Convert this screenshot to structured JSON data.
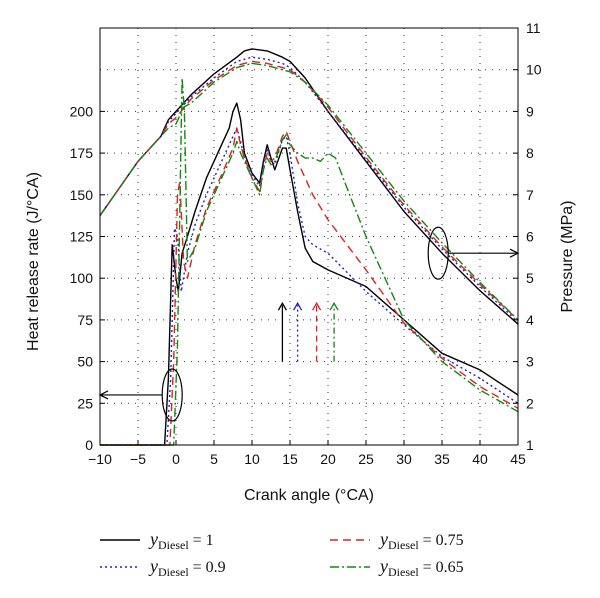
{
  "chart_data": {
    "type": "line",
    "xlabel": "Crank angle (°CA)",
    "ylabel_left": "Heat release rate (J/°CA)",
    "ylabel_right": "Pressure (MPa)",
    "xlim": [
      -10,
      45
    ],
    "ylim_left": [
      0,
      250
    ],
    "ylim_right": [
      1,
      11
    ],
    "x_ticks": [
      -10,
      -5,
      0,
      5,
      10,
      15,
      20,
      25,
      30,
      35,
      40,
      45
    ],
    "y_left_ticks": [
      0,
      25,
      50,
      75,
      100,
      125,
      150,
      175,
      200
    ],
    "y_right_ticks": [
      1,
      2,
      3,
      4,
      5,
      6,
      7,
      8,
      9,
      10,
      11
    ],
    "grid": true,
    "legend_position": "bottom",
    "legend_symbol": "y",
    "legend_subscript": "Diesel",
    "series": [
      {
        "name": "= 1",
        "color": "#000000",
        "dash": "",
        "hrr": [
          [
            -10,
            0
          ],
          [
            -1.5,
            0
          ],
          [
            -1,
            40
          ],
          [
            -0.5,
            120
          ],
          [
            0,
            100
          ],
          [
            0.3,
            92
          ],
          [
            0.8,
            115
          ],
          [
            1.5,
            125
          ],
          [
            2.5,
            140
          ],
          [
            4,
            160
          ],
          [
            5.5,
            175
          ],
          [
            7,
            190
          ],
          [
            7.5,
            200
          ],
          [
            8,
            205
          ],
          [
            8.5,
            195
          ],
          [
            9,
            175
          ],
          [
            10,
            163
          ],
          [
            11,
            157
          ],
          [
            11.5,
            170
          ],
          [
            12,
            180
          ],
          [
            12.5,
            172
          ],
          [
            13,
            165
          ],
          [
            14,
            178
          ],
          [
            14.5,
            178
          ],
          [
            15,
            165
          ],
          [
            16,
            140
          ],
          [
            17,
            118
          ],
          [
            18,
            110
          ],
          [
            20,
            105
          ],
          [
            25,
            95
          ],
          [
            30,
            75
          ],
          [
            35,
            55
          ],
          [
            40,
            45
          ],
          [
            45,
            30
          ]
        ],
        "pressure": [
          [
            -10,
            6.5
          ],
          [
            -5,
            7.8
          ],
          [
            -2,
            8.4
          ],
          [
            -1,
            8.8
          ],
          [
            0,
            9.0
          ],
          [
            2,
            9.4
          ],
          [
            5,
            9.9
          ],
          [
            8,
            10.3
          ],
          [
            9,
            10.45
          ],
          [
            10,
            10.5
          ],
          [
            12,
            10.45
          ],
          [
            14,
            10.3
          ],
          [
            15,
            10.2
          ],
          [
            17,
            9.8
          ],
          [
            20,
            9.0
          ],
          [
            25,
            7.8
          ],
          [
            30,
            6.6
          ],
          [
            35,
            5.6
          ],
          [
            40,
            4.7
          ],
          [
            45,
            3.9
          ]
        ]
      },
      {
        "name": "= 0.9",
        "color": "#2222bb",
        "dash": "2,3",
        "hrr": [
          [
            -10,
            0
          ],
          [
            -1.2,
            0
          ],
          [
            -0.7,
            40
          ],
          [
            -0.2,
            130
          ],
          [
            0.2,
            125
          ],
          [
            0.7,
            92
          ],
          [
            1.5,
            115
          ],
          [
            2.5,
            132
          ],
          [
            4,
            150
          ],
          [
            6,
            170
          ],
          [
            7.5,
            185
          ],
          [
            8,
            190
          ],
          [
            8.5,
            182
          ],
          [
            9,
            172
          ],
          [
            10,
            162
          ],
          [
            11,
            155
          ],
          [
            11.5,
            168
          ],
          [
            12,
            178
          ],
          [
            12.5,
            170
          ],
          [
            13,
            168
          ],
          [
            14,
            183
          ],
          [
            14.5,
            185
          ],
          [
            15,
            175
          ],
          [
            16,
            145
          ],
          [
            17,
            125
          ],
          [
            18,
            120
          ],
          [
            20,
            115
          ],
          [
            25,
            92
          ],
          [
            30,
            72
          ],
          [
            35,
            53
          ],
          [
            40,
            40
          ],
          [
            45,
            25
          ]
        ],
        "pressure": [
          [
            -10,
            6.5
          ],
          [
            -5,
            7.8
          ],
          [
            -2,
            8.4
          ],
          [
            -1,
            8.75
          ],
          [
            0,
            8.95
          ],
          [
            2,
            9.35
          ],
          [
            5,
            9.8
          ],
          [
            8,
            10.2
          ],
          [
            10,
            10.3
          ],
          [
            12,
            10.25
          ],
          [
            14,
            10.15
          ],
          [
            15,
            10.05
          ],
          [
            17,
            9.7
          ],
          [
            20,
            9.0
          ],
          [
            25,
            7.85
          ],
          [
            30,
            6.7
          ],
          [
            35,
            5.7
          ],
          [
            40,
            4.8
          ],
          [
            45,
            3.95
          ]
        ]
      },
      {
        "name": "= 0.75",
        "color": "#dd2222",
        "dash": "8,5",
        "hrr": [
          [
            -10,
            0
          ],
          [
            -0.8,
            0
          ],
          [
            -0.3,
            50
          ],
          [
            0.2,
            150
          ],
          [
            0.5,
            158
          ],
          [
            1,
            110
          ],
          [
            1.5,
            100
          ],
          [
            2.5,
            120
          ],
          [
            4,
            142
          ],
          [
            6,
            162
          ],
          [
            7.5,
            178
          ],
          [
            8,
            190
          ],
          [
            8.5,
            180
          ],
          [
            9,
            172
          ],
          [
            10,
            160
          ],
          [
            11,
            152
          ],
          [
            11.5,
            165
          ],
          [
            12,
            175
          ],
          [
            12.5,
            170
          ],
          [
            13,
            172
          ],
          [
            14,
            185
          ],
          [
            14.5,
            188
          ],
          [
            15,
            182
          ],
          [
            16,
            170
          ],
          [
            17,
            160
          ],
          [
            18,
            150
          ],
          [
            20,
            135
          ],
          [
            25,
            105
          ],
          [
            30,
            73
          ],
          [
            35,
            52
          ],
          [
            40,
            35
          ],
          [
            45,
            22
          ]
        ],
        "pressure": [
          [
            -10,
            6.5
          ],
          [
            -5,
            7.8
          ],
          [
            -2,
            8.4
          ],
          [
            -1,
            8.7
          ],
          [
            0,
            8.85
          ],
          [
            2,
            9.3
          ],
          [
            5,
            9.75
          ],
          [
            8,
            10.1
          ],
          [
            10,
            10.2
          ],
          [
            12,
            10.15
          ],
          [
            14,
            10.05
          ],
          [
            15,
            10.0
          ],
          [
            17,
            9.7
          ],
          [
            20,
            9.1
          ],
          [
            25,
            7.9
          ],
          [
            30,
            6.75
          ],
          [
            35,
            5.75
          ],
          [
            40,
            4.85
          ],
          [
            45,
            4.0
          ]
        ]
      },
      {
        "name": "= 0.65",
        "color": "#118811",
        "dash": "9,3,2,3",
        "hrr": [
          [
            -10,
            0
          ],
          [
            -0.3,
            0
          ],
          [
            0.2,
            60
          ],
          [
            0.8,
            220
          ],
          [
            1.1,
            200
          ],
          [
            1.5,
            110
          ],
          [
            2.5,
            118
          ],
          [
            4,
            140
          ],
          [
            6,
            160
          ],
          [
            7.5,
            175
          ],
          [
            8,
            182
          ],
          [
            8.5,
            175
          ],
          [
            9,
            170
          ],
          [
            10,
            160
          ],
          [
            11,
            150
          ],
          [
            11.5,
            165
          ],
          [
            12,
            172
          ],
          [
            12.5,
            168
          ],
          [
            13,
            170
          ],
          [
            14,
            183
          ],
          [
            14.5,
            186
          ],
          [
            15,
            180
          ],
          [
            16,
            175
          ],
          [
            17,
            172
          ],
          [
            18,
            172
          ],
          [
            19,
            170
          ],
          [
            20,
            175
          ],
          [
            21,
            172
          ],
          [
            22,
            160
          ],
          [
            25,
            125
          ],
          [
            30,
            75
          ],
          [
            35,
            50
          ],
          [
            40,
            33
          ],
          [
            45,
            20
          ]
        ],
        "pressure": [
          [
            -10,
            6.5
          ],
          [
            -5,
            7.8
          ],
          [
            -2,
            8.4
          ],
          [
            -1,
            8.6
          ],
          [
            0,
            8.7
          ],
          [
            1,
            9.1
          ],
          [
            2,
            9.2
          ],
          [
            5,
            9.7
          ],
          [
            8,
            10.05
          ],
          [
            10,
            10.15
          ],
          [
            12,
            10.1
          ],
          [
            14,
            10.0
          ],
          [
            15,
            9.95
          ],
          [
            17,
            9.7
          ],
          [
            20,
            9.15
          ],
          [
            25,
            8.0
          ],
          [
            30,
            6.85
          ],
          [
            35,
            5.85
          ],
          [
            40,
            4.9
          ],
          [
            45,
            4.0
          ]
        ]
      }
    ],
    "markers": [
      {
        "x": 14,
        "color": "#000000",
        "dash": ""
      },
      {
        "x": 16,
        "color": "#2222bb",
        "dash": "2,3"
      },
      {
        "x": 18.5,
        "color": "#dd2222",
        "dash": "6,4"
      },
      {
        "x": 20.8,
        "color": "#118811",
        "dash": "6,3,2,3"
      }
    ],
    "annotations": [
      {
        "target_axis": "left",
        "ellipse_x": -0.5,
        "ellipse_y": 30,
        "arrow_to_x": -10
      },
      {
        "target_axis": "right",
        "ellipse_x": 34.5,
        "ellipse_y": 5.6,
        "arrow_to_x": 45
      }
    ]
  }
}
